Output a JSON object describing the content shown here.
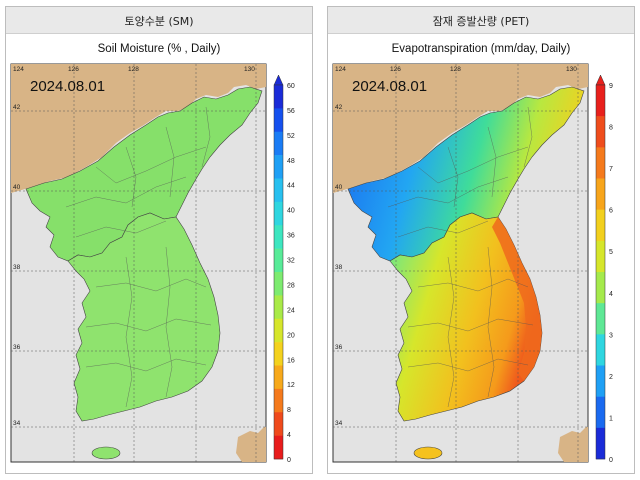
{
  "panels": [
    {
      "header": "토양수분 (SM)",
      "map_title": "Soil Moisture (% , Daily)",
      "date": "2024.08.01",
      "lon_ticks": [
        "124",
        "126",
        "128",
        "130"
      ],
      "lat_ticks": [
        "42",
        "40",
        "38",
        "36",
        "34"
      ],
      "colorbar_labels": [
        "60",
        "56",
        "52",
        "48",
        "44",
        "40",
        "36",
        "32",
        "28",
        "24",
        "20",
        "16",
        "12",
        "8",
        "4",
        "0"
      ],
      "colorbar_colors": [
        "#1a2bd8",
        "#1550ee",
        "#1a7cf5",
        "#1fa0f5",
        "#28c0ef",
        "#2fd6e0",
        "#3de6c0",
        "#58eb98",
        "#7deb70",
        "#a9ea48",
        "#d6e62b",
        "#f4d21e",
        "#f7a91b",
        "#f57a1c",
        "#ef4a1c",
        "#e81c1c"
      ],
      "land_fill": "#86e06a",
      "land_fill_south": "#8fe36e"
    },
    {
      "header": "잠재 증발산량 (PET)",
      "map_title": "Evapotranspiration (mm/day, Daily)",
      "date": "2024.08.01",
      "lon_ticks": [
        "124",
        "126",
        "128",
        "130"
      ],
      "lat_ticks": [
        "42",
        "40",
        "38",
        "36",
        "34"
      ],
      "colorbar_labels": [
        "9",
        "8",
        "7",
        "6",
        "5",
        "4",
        "3",
        "2",
        "1",
        "0"
      ],
      "colorbar_colors": [
        "#e8201c",
        "#ef4d1c",
        "#f57a1c",
        "#f7a51b",
        "#f2d01e",
        "#d6e62b",
        "#a5ea4c",
        "#5ee895",
        "#2fd6e0",
        "#1fa0f5",
        "#1a6af0",
        "#1a2bd8"
      ],
      "land_fill": "#f3c23a",
      "land_fill_south": "#f2b830"
    }
  ]
}
